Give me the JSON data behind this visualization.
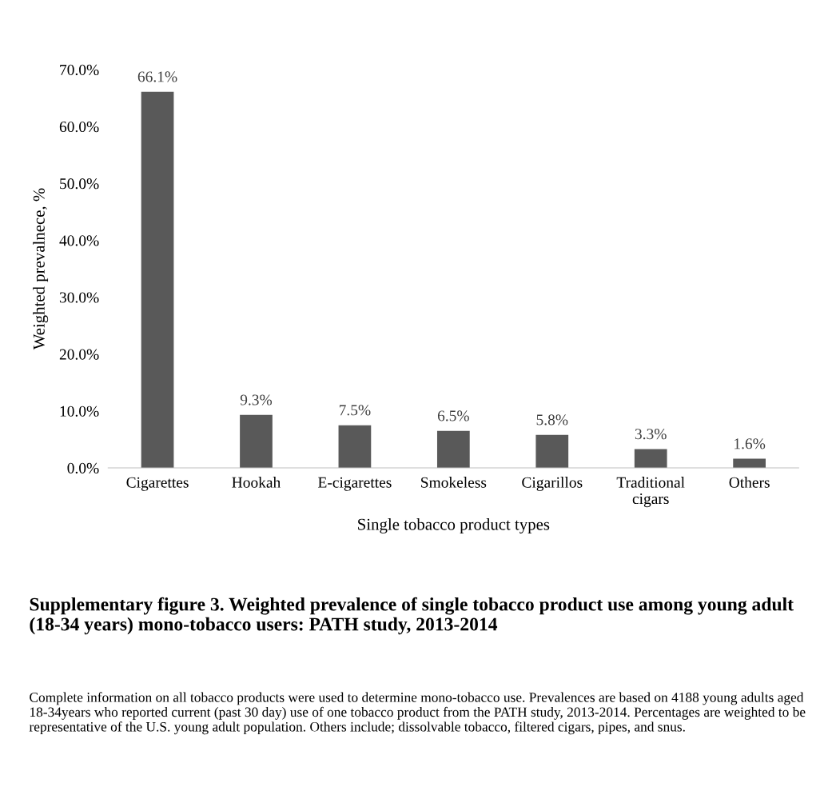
{
  "chart_data": {
    "type": "bar",
    "title": "Supplementary figure 3. Weighted prevalence of single tobacco product use among young adult (18-34 years) mono-tobacco users: PATH study, 2013-2014",
    "xlabel": "Single tobacco product types",
    "ylabel": "Weighted prevalnece, %",
    "categories": [
      "Cigarettes",
      "Hookah",
      "E-cigarettes",
      "Smokeless",
      "Cigarillos",
      "Traditional\ncigars",
      "Others"
    ],
    "values": [
      66.1,
      9.3,
      7.5,
      6.5,
      5.8,
      3.3,
      1.6
    ],
    "value_labels": [
      "66.1%",
      "9.3%",
      "7.5%",
      "6.5%",
      "5.8%",
      "3.3%",
      "1.6%"
    ],
    "color": "#595959",
    "ylim": [
      0,
      70
    ],
    "yticks": [
      {
        "value": 0,
        "label": "0.0%"
      },
      {
        "value": 10,
        "label": "10.0%"
      },
      {
        "value": 20,
        "label": "20.0%"
      },
      {
        "value": 30,
        "label": "30.0%"
      },
      {
        "value": 40,
        "label": "40.0%"
      },
      {
        "value": 50,
        "label": "50.0%"
      },
      {
        "value": 60,
        "label": "60.0%"
      },
      {
        "value": 70,
        "label": "70.0%"
      }
    ],
    "grid": false,
    "annotations": [
      "Complete information on all tobacco products were used to determine mono-tobacco use. Prevalences are based on 4188 young adults aged 18-34years who reported current (past 30 day) use of one tobacco product from the PATH study, 2013-2014. Percentages are weighted to be representative of the U.S. young adult population. Others include; dissolvable tobacco, filtered cigars, pipes, and snus."
    ]
  }
}
